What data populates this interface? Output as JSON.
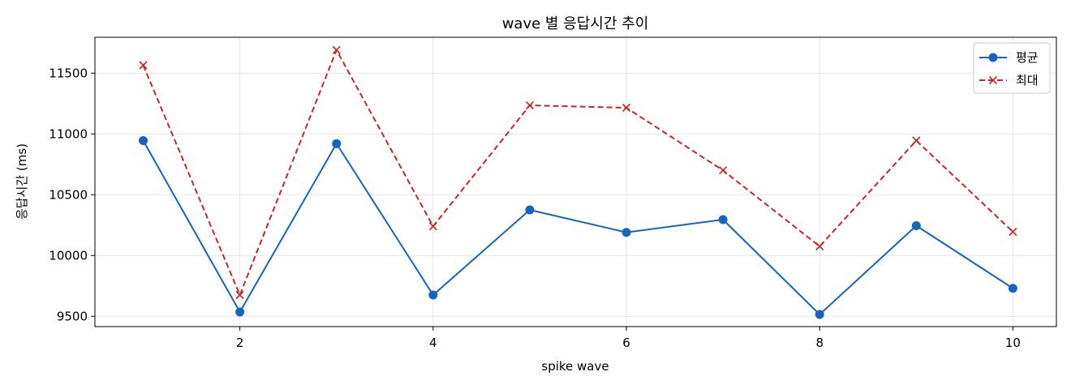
{
  "chart_data": {
    "type": "line",
    "title": "wave 별 응답시간 추이",
    "xlabel": "spike wave",
    "ylabel": "응답시간 (ms)",
    "x": [
      1,
      2,
      3,
      4,
      5,
      6,
      7,
      8,
      9,
      10
    ],
    "xlim": [
      0.5,
      10.45
    ],
    "ylim": [
      9415,
      11795
    ],
    "xticks": [
      2,
      4,
      6,
      8,
      10
    ],
    "yticks": [
      9500,
      10000,
      10500,
      11000,
      11500
    ],
    "grid": true,
    "legend_position": "top-right",
    "series": [
      {
        "name": "평균",
        "values": [
          10945,
          9535,
          10920,
          9675,
          10375,
          10190,
          10295,
          9515,
          10245,
          9730
        ],
        "color": "#1565c0",
        "marker": "circle",
        "linestyle": "solid"
      },
      {
        "name": "최대",
        "values": [
          11565,
          9675,
          11690,
          10240,
          11235,
          11215,
          10700,
          10075,
          10945,
          10195
        ],
        "color": "#c62828",
        "marker": "x",
        "linestyle": "dashed"
      }
    ]
  }
}
